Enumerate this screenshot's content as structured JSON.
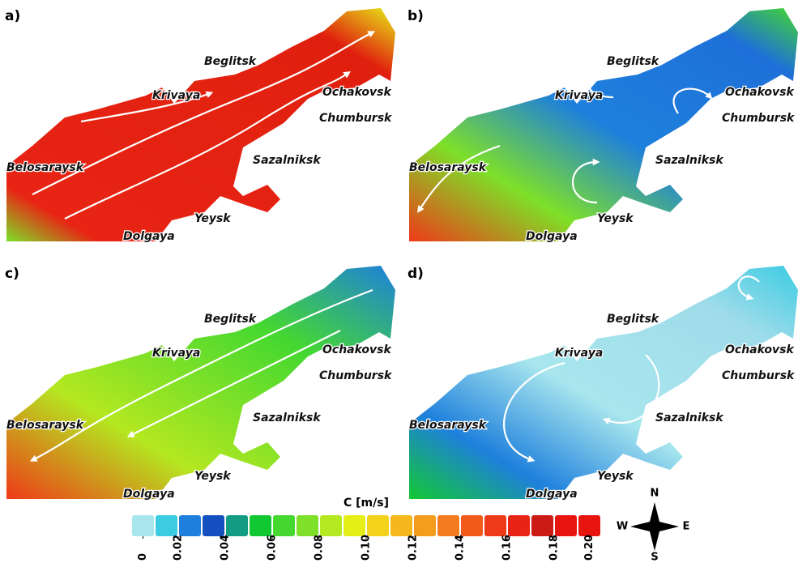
{
  "panels": [
    {
      "label": "a)",
      "places": [
        "Belosaraysk",
        "Krivaya",
        "Beglitsk",
        "Ochakovsk",
        "Chumbursk",
        "Sazalniksk",
        "Yeysk",
        "Dolgaya"
      ]
    },
    {
      "label": "b)",
      "places": [
        "Belosaraysk",
        "Krivaya",
        "Beglitsk",
        "Ochakovsk",
        "Chumbursk",
        "Sazalniksk",
        "Yeysk",
        "Dolgaya"
      ]
    },
    {
      "label": "c)",
      "places": [
        "Belosaraysk",
        "Krivaya",
        "Beglitsk",
        "Ochakovsk",
        "Chumbursk",
        "Sazalniksk",
        "Yeysk",
        "Dolgaya"
      ]
    },
    {
      "label": "d)",
      "places": [
        "Belosaraysk",
        "Krivaya",
        "Beglitsk",
        "Ochakovsk",
        "Chumbursk",
        "Sazalniksk",
        "Yeysk",
        "Dolgaya"
      ]
    }
  ],
  "colorbar": {
    "title": "C [m/s]",
    "lim": [
      0,
      0.2
    ],
    "ticks": [
      0,
      0.02,
      0.04,
      0.06,
      0.08,
      {
        "value": 0.1,
        "label": "0.10"
      },
      0.12,
      0.14,
      0.16,
      0.18,
      {
        "value": 0.2,
        "label": "0.20"
      }
    ],
    "colors": [
      "#a8e6ee",
      "#3ccce2",
      "#1e80dc",
      "#1450c0",
      "#139c84",
      "#12c832",
      "#44d830",
      "#7ee028",
      "#b4e820",
      "#e6ee18",
      "#f2d21a",
      "#f4b81c",
      "#f49c1e",
      "#f47c1e",
      "#f25a1c",
      "#ee3a18",
      "#e82414",
      "#cc1a14",
      "#e81410",
      "#e81410"
    ]
  },
  "compass": {
    "north": "N",
    "east": "E",
    "south": "S",
    "west": "W"
  }
}
